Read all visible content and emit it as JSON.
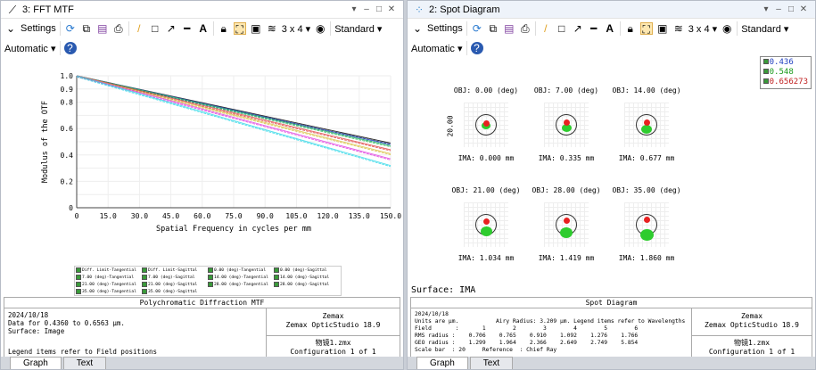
{
  "left": {
    "title": "3: FFT MTF",
    "settings": "Settings",
    "grid": "3 x 4",
    "standard": "Standard",
    "automatic": "Automatic",
    "legend": [
      "Diff. Limit-Tangential",
      "Diff. Limit-Sagittal",
      "0.00 (deg)-Tangential",
      "0.00 (deg)-Sagittal",
      "7.00 (deg)-Tangential",
      "7.00 (deg)-Sagittal",
      "14.00 (deg)-Tangential",
      "14.00 (deg)-Sagittal",
      "21.00 (deg)-Tangential",
      "21.00 (deg)-Sagittal",
      "28.00 (deg)-Tangential",
      "28.00 (deg)-Sagittal",
      "35.00 (deg)-Tangential",
      "35.00 (deg)-Sagittal"
    ],
    "info": {
      "header": "Polychromatic Diffraction MTF",
      "body": "2024/10/18\nData for 0.4360 to 0.6563 µm.\nSurface: Image",
      "footer": "Legend items refer to Field positions",
      "company": "Zemax",
      "product": "Zemax OpticStudio 18.9",
      "file": "物镜1.zmx",
      "config": "Configuration 1 of 1"
    },
    "tabs": [
      "Graph",
      "Text"
    ]
  },
  "right": {
    "title": "2: Spot Diagram",
    "settings": "Settings",
    "grid": "3 x 4",
    "standard": "Standard",
    "automatic": "Automatic",
    "wavelengths": [
      "0.436",
      "0.548",
      "0.656273"
    ],
    "scale_label": "20.00",
    "cells": [
      {
        "obj": "OBJ: 0.00 (deg)",
        "ima": "IMA: 0.000 mm"
      },
      {
        "obj": "OBJ: 7.00 (deg)",
        "ima": "IMA: 0.335 mm"
      },
      {
        "obj": "OBJ: 14.00 (deg)",
        "ima": "IMA: 0.677 mm"
      },
      {
        "obj": "OBJ: 21.00 (deg)",
        "ima": "IMA: 1.034 mm"
      },
      {
        "obj": "OBJ: 28.00 (deg)",
        "ima": "IMA: 1.419 mm"
      },
      {
        "obj": "OBJ: 35.00 (deg)",
        "ima": "IMA: 1.860 mm"
      }
    ],
    "surface": "Surface: IMA",
    "info": {
      "header": "Spot Diagram",
      "body": "2024/10/18\nUnits are µm.           Airy Radius: 3.209 µm. Legend items refer to Wavelengths\nField       :       1        2        3        4        5        6\nRMS radius :    0.706    0.765    0.910    1.092    1.276    1.766\nGEO radius :    1.299    1.964    2.366    2.649    2.749    5.854\nScale bar  : 20     Reference  : Chief Ray",
      "company": "Zemax",
      "product": "Zemax OpticStudio 18.9",
      "file": "物镜1.zmx",
      "config": "Configuration 1 of 1"
    },
    "tabs": [
      "Graph",
      "Text"
    ]
  },
  "chart_data": {
    "type": "line",
    "title": "Polychromatic Diffraction MTF",
    "xlabel": "Spatial Frequency in cycles per mm",
    "ylabel": "Modulus of the OTF",
    "xlim": [
      0,
      150
    ],
    "ylim": [
      0,
      1
    ],
    "xticks": [
      "0",
      "15.0",
      "30.0",
      "45.0",
      "60.0",
      "75.0",
      "90.0",
      "105.0",
      "120.0",
      "135.0",
      "150.0"
    ],
    "yticks": [
      "0",
      "0.1",
      "0.2",
      "0.3",
      "0.4",
      "0.5",
      "0.6",
      "0.7",
      "0.8",
      "0.9",
      "1.0"
    ],
    "x": [
      0,
      75,
      150
    ],
    "series": [
      {
        "name": "Diff. Limit",
        "color": "#000000",
        "values": [
          1,
          0.745,
          0.49
        ]
      },
      {
        "name": "0.00 (deg)",
        "color": "#3050d0",
        "values": [
          1,
          0.74,
          0.48
        ]
      },
      {
        "name": "7.00 (deg)",
        "color": "#30c060",
        "values": [
          1,
          0.735,
          0.47
        ]
      },
      {
        "name": "14.00 (deg)",
        "color": "#e04040",
        "values": [
          1,
          0.72,
          0.44
        ]
      },
      {
        "name": "21.00 (deg)",
        "color": "#d8c040",
        "values": [
          1,
          0.705,
          0.41
        ]
      },
      {
        "name": "28.00 (deg)",
        "color": "#e040e0",
        "values": [
          1,
          0.685,
          0.37
        ]
      },
      {
        "name": "35.00 (deg)",
        "color": "#30d8e8",
        "values": [
          1,
          0.66,
          0.32
        ]
      }
    ]
  }
}
